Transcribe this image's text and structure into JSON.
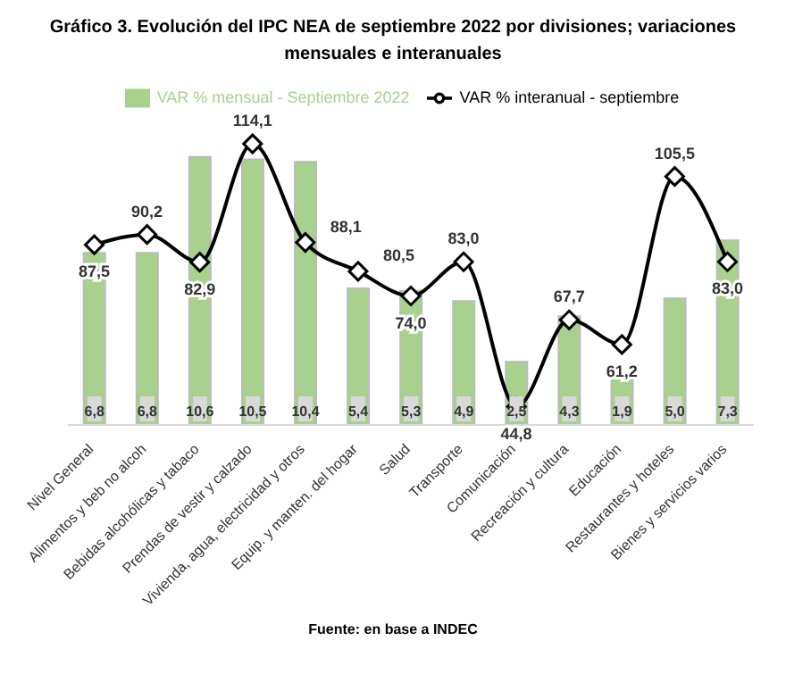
{
  "chart_data": {
    "type": "bar",
    "title": "Gráfico 3. Evolución del IPC NEA de septiembre 2022 por divisiones; variaciones mensuales e interanuales",
    "categories": [
      "Nivel General",
      "Alimentos y beb no alcoh",
      "Bebidas alcohólicas y tabaco",
      "Prendas de vestir y calzado",
      "Vivienda, agua, electricidad y otros",
      "Equip. y manten. del hogar",
      "Salud",
      "Transporte",
      "Comunicación",
      "Recreación y cultura",
      "Educación",
      "Restaurantes y hoteles",
      "Bienes y servicios varios"
    ],
    "series": [
      {
        "name": "VAR % mensual - Septiembre 2022",
        "color": "#a9d18e",
        "values": [
          6.8,
          6.8,
          10.6,
          10.5,
          10.4,
          5.4,
          5.3,
          4.9,
          2.5,
          4.3,
          1.9,
          5.0,
          7.3
        ],
        "value_labels": [
          "6,8",
          "6,8",
          "10,6",
          "10,5",
          "10,4",
          "5,4",
          "5,3",
          "4,9",
          "2,5",
          "4,3",
          "1,9",
          "5,0",
          "7,3"
        ]
      },
      {
        "name": "VAR % interanual - septiembre",
        "type": "line",
        "axis": "y2",
        "color": "#000000",
        "values": [
          87.5,
          90.2,
          82.9,
          114.1,
          88.1,
          80.5,
          74.0,
          83.0,
          44.8,
          67.7,
          61.2,
          105.5,
          83.0
        ],
        "value_labels": [
          "87,5",
          "90,2",
          "82,9",
          "114,1",
          "88,1",
          "80,5",
          "74,0",
          "83,0",
          "44,8",
          "67,7",
          "61,2",
          "105,5",
          "83,0"
        ]
      }
    ],
    "legend": "top",
    "marker": "diamond",
    "line_style": "solid",
    "grid": false,
    "annotations": [
      "Fuente: en base a INDEC"
    ]
  }
}
